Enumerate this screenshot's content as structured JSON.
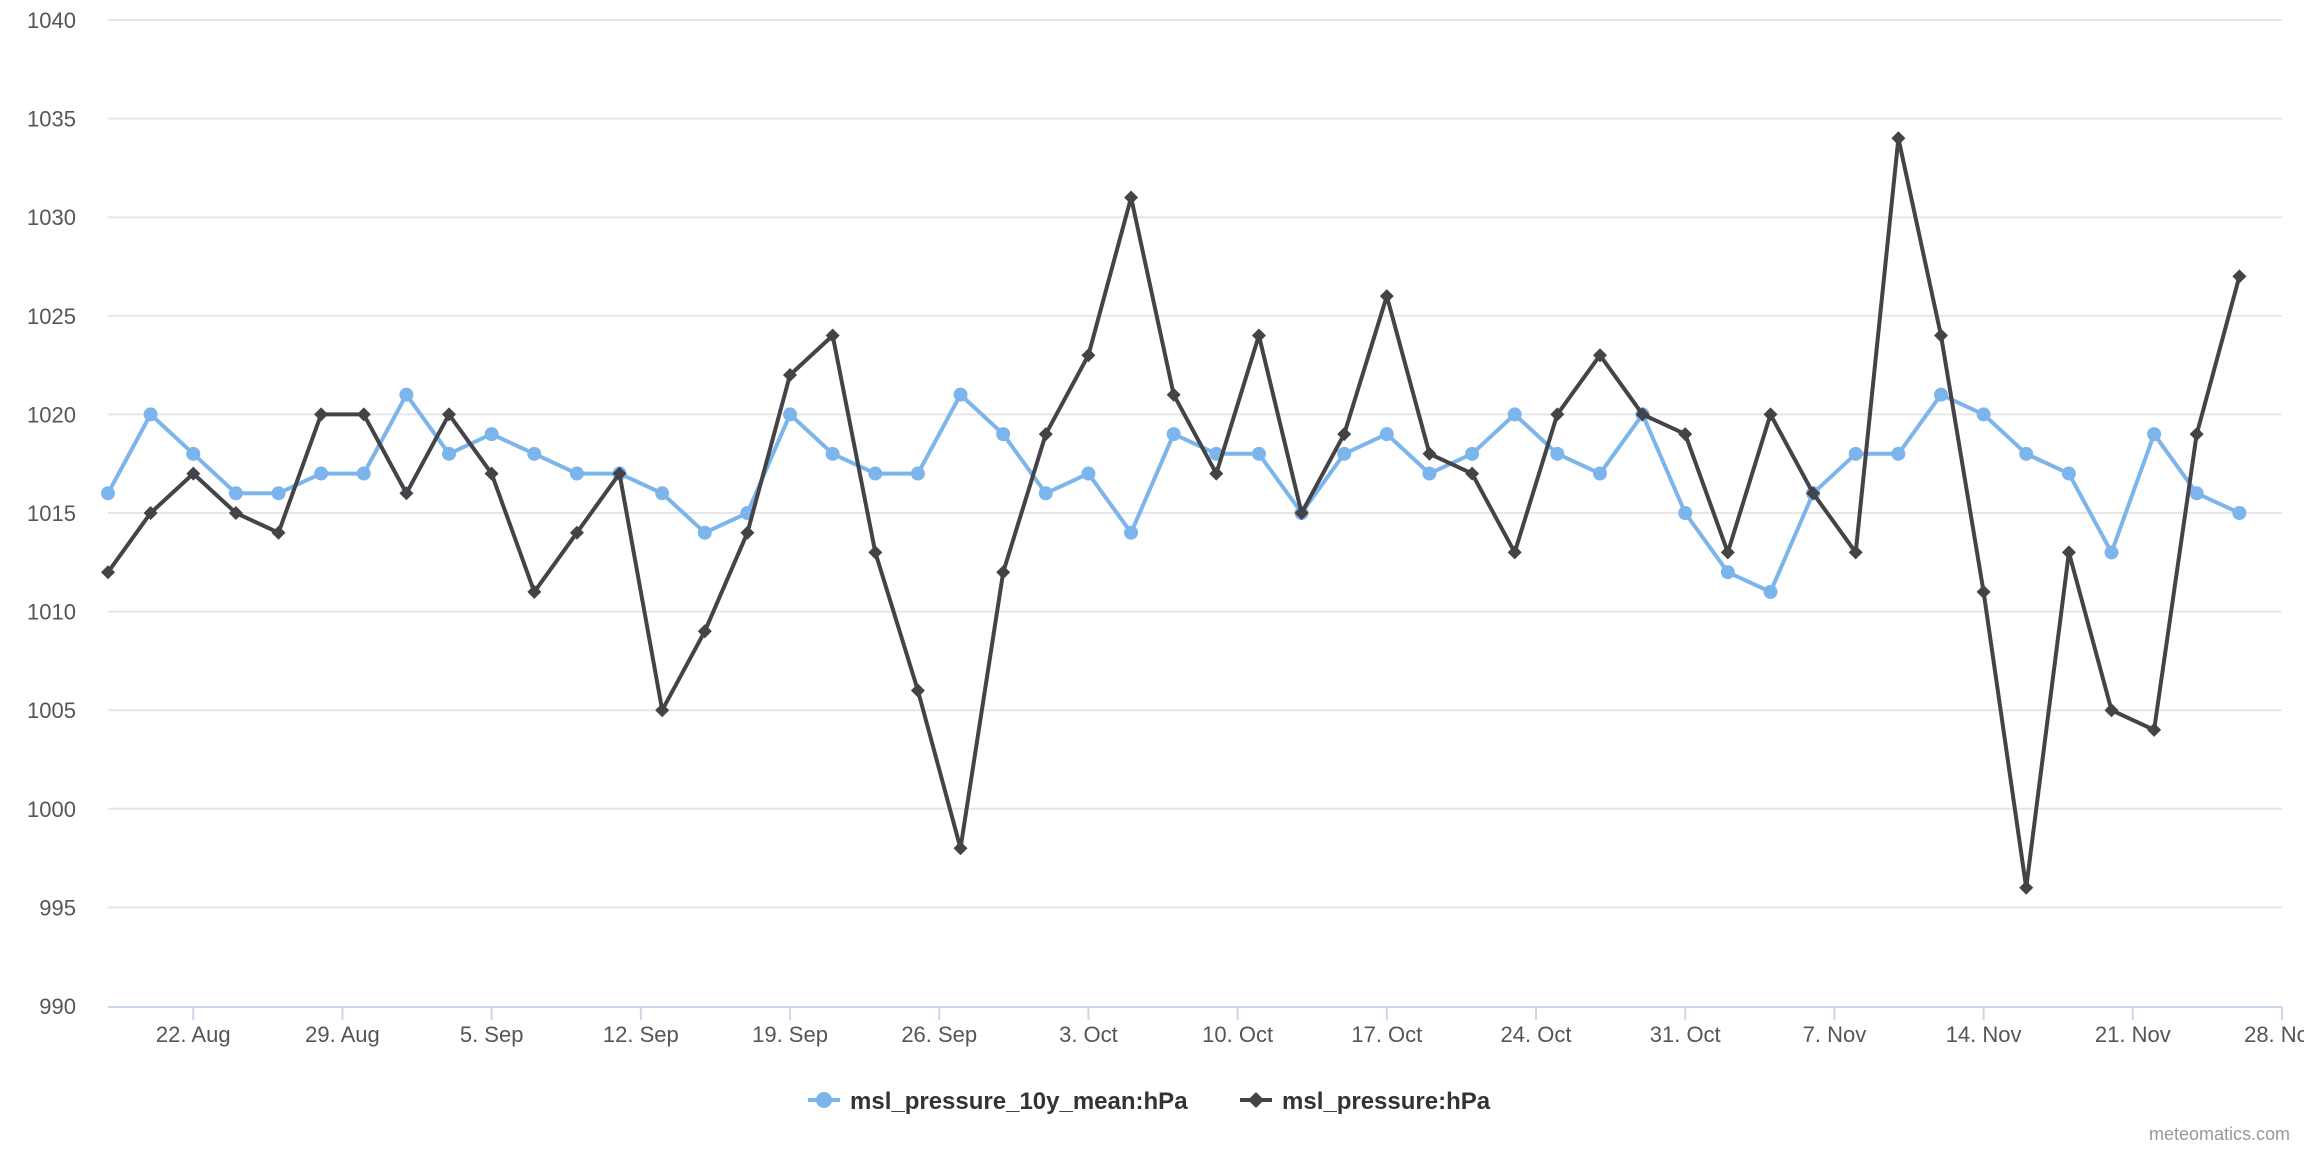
{
  "chart_data": {
    "type": "line",
    "title": "",
    "xlabel": "",
    "ylabel": "",
    "x_start": "2023-08-18",
    "x_end": "2023-11-28",
    "x_step_days": 2,
    "x_tick_labels": [
      "22. Aug",
      "29. Aug",
      "5. Sep",
      "12. Sep",
      "19. Sep",
      "26. Sep",
      "3. Oct",
      "10. Oct",
      "17. Oct",
      "24. Oct",
      "31. Oct",
      "7. Nov",
      "14. Nov",
      "21. Nov",
      "28. Nov"
    ],
    "ylim": [
      990,
      1040
    ],
    "y_ticks": [
      990,
      995,
      1000,
      1005,
      1010,
      1015,
      1020,
      1025,
      1030,
      1035,
      1040
    ],
    "grid": true,
    "legend_position": "bottom-center",
    "series": [
      {
        "name": "msl_pressure_10y_mean:hPa",
        "color": "#7cb5ec",
        "marker": "circle",
        "values": [
          1016,
          1020,
          1018,
          1016,
          1016,
          1017,
          1017,
          1021,
          1018,
          1019,
          1018,
          1017,
          1017,
          1016,
          1014,
          1015,
          1020,
          1018,
          1017,
          1017,
          1021,
          1019,
          1016,
          1017,
          1014,
          1019,
          1018,
          1018,
          1015,
          1018,
          1019,
          1017,
          1018,
          1020,
          1018,
          1017,
          1020,
          1015,
          1012,
          1011,
          1016,
          1018,
          1018,
          1021,
          1020,
          1018,
          1017,
          1013,
          1019,
          1016,
          1015
        ]
      },
      {
        "name": "msl_pressure:hPa",
        "color": "#434348",
        "marker": "diamond",
        "values": [
          1012,
          1015,
          1017,
          1015,
          1014,
          1020,
          1020,
          1016,
          1020,
          1017,
          1011,
          1014,
          1017,
          1005,
          1009,
          1014,
          1022,
          1024,
          1013,
          1006,
          998,
          1012,
          1019,
          1023,
          1031,
          1021,
          1017,
          1024,
          1015,
          1019,
          1026,
          1018,
          1017,
          1013,
          1020,
          1023,
          1020,
          1019,
          1013,
          1020,
          1016,
          1013,
          1034,
          1024,
          1011,
          996,
          1013,
          1005,
          1004,
          1019,
          1027
        ]
      }
    ]
  },
  "credit": "meteomatics.com"
}
